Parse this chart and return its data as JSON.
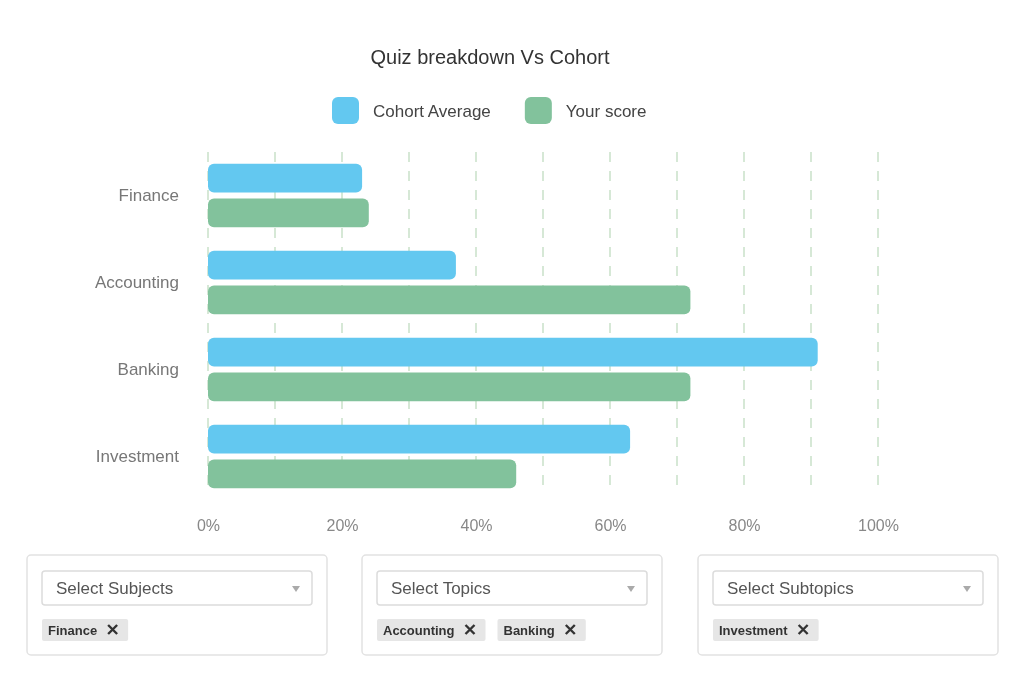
{
  "chart_data": {
    "type": "bar",
    "orientation": "horizontal",
    "title": "Quiz breakdown  Vs Cohort",
    "categories": [
      "Finance",
      "Accounting",
      "Banking",
      "Investment"
    ],
    "series": [
      {
        "name": "Cohort Average",
        "color": "#63c8f0",
        "values": [
          23,
          37,
          91,
          63
        ]
      },
      {
        "name": "Your score",
        "color": "#82c29c",
        "values": [
          24,
          72,
          72,
          46
        ]
      }
    ],
    "xlim": [
      0,
      100
    ],
    "xticks": [
      {
        "value": 0,
        "label": "0%"
      },
      {
        "value": 10,
        "label": null
      },
      {
        "value": 20,
        "label": "20%"
      },
      {
        "value": 30,
        "label": null
      },
      {
        "value": 40,
        "label": "40%"
      },
      {
        "value": 50,
        "label": null
      },
      {
        "value": 60,
        "label": "60%"
      },
      {
        "value": 70,
        "label": null
      },
      {
        "value": 80,
        "label": "80%"
      },
      {
        "value": 90,
        "label": null
      },
      {
        "value": 100,
        "label": "100%"
      }
    ],
    "grid": "x",
    "legend": "top",
    "annotations": [
      "Select Subjects",
      "Finance",
      "Select Topics",
      "Accounting",
      "Banking",
      "Select Subtopics",
      "Investment"
    ]
  }
}
